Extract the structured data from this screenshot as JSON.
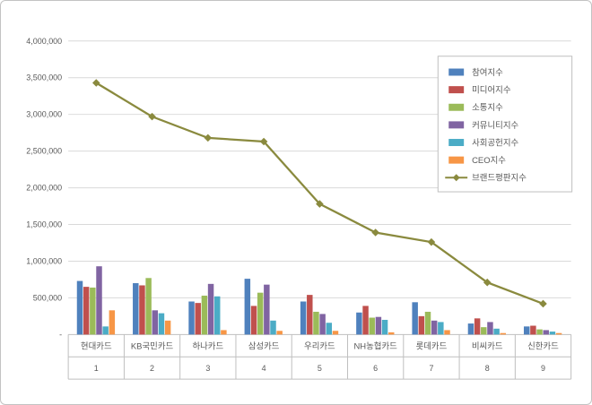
{
  "chart_data": {
    "type": "bar",
    "subtype": "grouped-bar-with-line",
    "title": "",
    "categories": [
      "현대카드",
      "KB국민카드",
      "하나카드",
      "삼성카드",
      "우리카드",
      "NH농협카드",
      "롯데카드",
      "비씨카드",
      "신한카드"
    ],
    "category_numbers": [
      "1",
      "2",
      "3",
      "4",
      "5",
      "6",
      "7",
      "8",
      "9"
    ],
    "series": [
      {
        "name": "참여지수",
        "type": "bar",
        "color": "#4F81BD",
        "values": [
          730000,
          700000,
          450000,
          760000,
          450000,
          300000,
          440000,
          150000,
          110000
        ]
      },
      {
        "name": "미디어지수",
        "type": "bar",
        "color": "#C0504D",
        "values": [
          650000,
          670000,
          430000,
          390000,
          540000,
          390000,
          250000,
          220000,
          120000
        ]
      },
      {
        "name": "소통지수",
        "type": "bar",
        "color": "#9BBB59",
        "values": [
          640000,
          770000,
          530000,
          570000,
          310000,
          230000,
          310000,
          100000,
          70000
        ]
      },
      {
        "name": "커뮤니티지수",
        "type": "bar",
        "color": "#8064A2",
        "values": [
          930000,
          330000,
          690000,
          680000,
          280000,
          240000,
          190000,
          170000,
          60000
        ]
      },
      {
        "name": "사회공헌지수",
        "type": "bar",
        "color": "#4BACC6",
        "values": [
          110000,
          290000,
          520000,
          190000,
          160000,
          200000,
          170000,
          80000,
          40000
        ]
      },
      {
        "name": "CEO지수",
        "type": "bar",
        "color": "#F79646",
        "values": [
          330000,
          190000,
          60000,
          50000,
          50000,
          30000,
          60000,
          20000,
          20000
        ]
      },
      {
        "name": "브랜드평판지수",
        "type": "line",
        "color": "#8A8A3E",
        "marker": "diamond",
        "values": [
          3430000,
          2970000,
          2680000,
          2630000,
          1780000,
          1390000,
          1260000,
          710000,
          420000
        ]
      }
    ],
    "xlabel": "",
    "ylabel": "",
    "ylim": [
      0,
      4000000
    ],
    "ytick_step": 500000,
    "ytick_labels": [
      "-",
      "500,000",
      "1,000,000",
      "1,500,000",
      "2,000,000",
      "2,500,000",
      "3,000,000",
      "3,500,000",
      "4,000,000"
    ],
    "grid": true,
    "legend_position": "top-right",
    "colors": {
      "gridline": "#D9D9D9",
      "axis_line": "#BFBFBF",
      "tick_text": "#595959",
      "legend_border": "#BFBFBF",
      "background": "#FFFFFF"
    }
  }
}
